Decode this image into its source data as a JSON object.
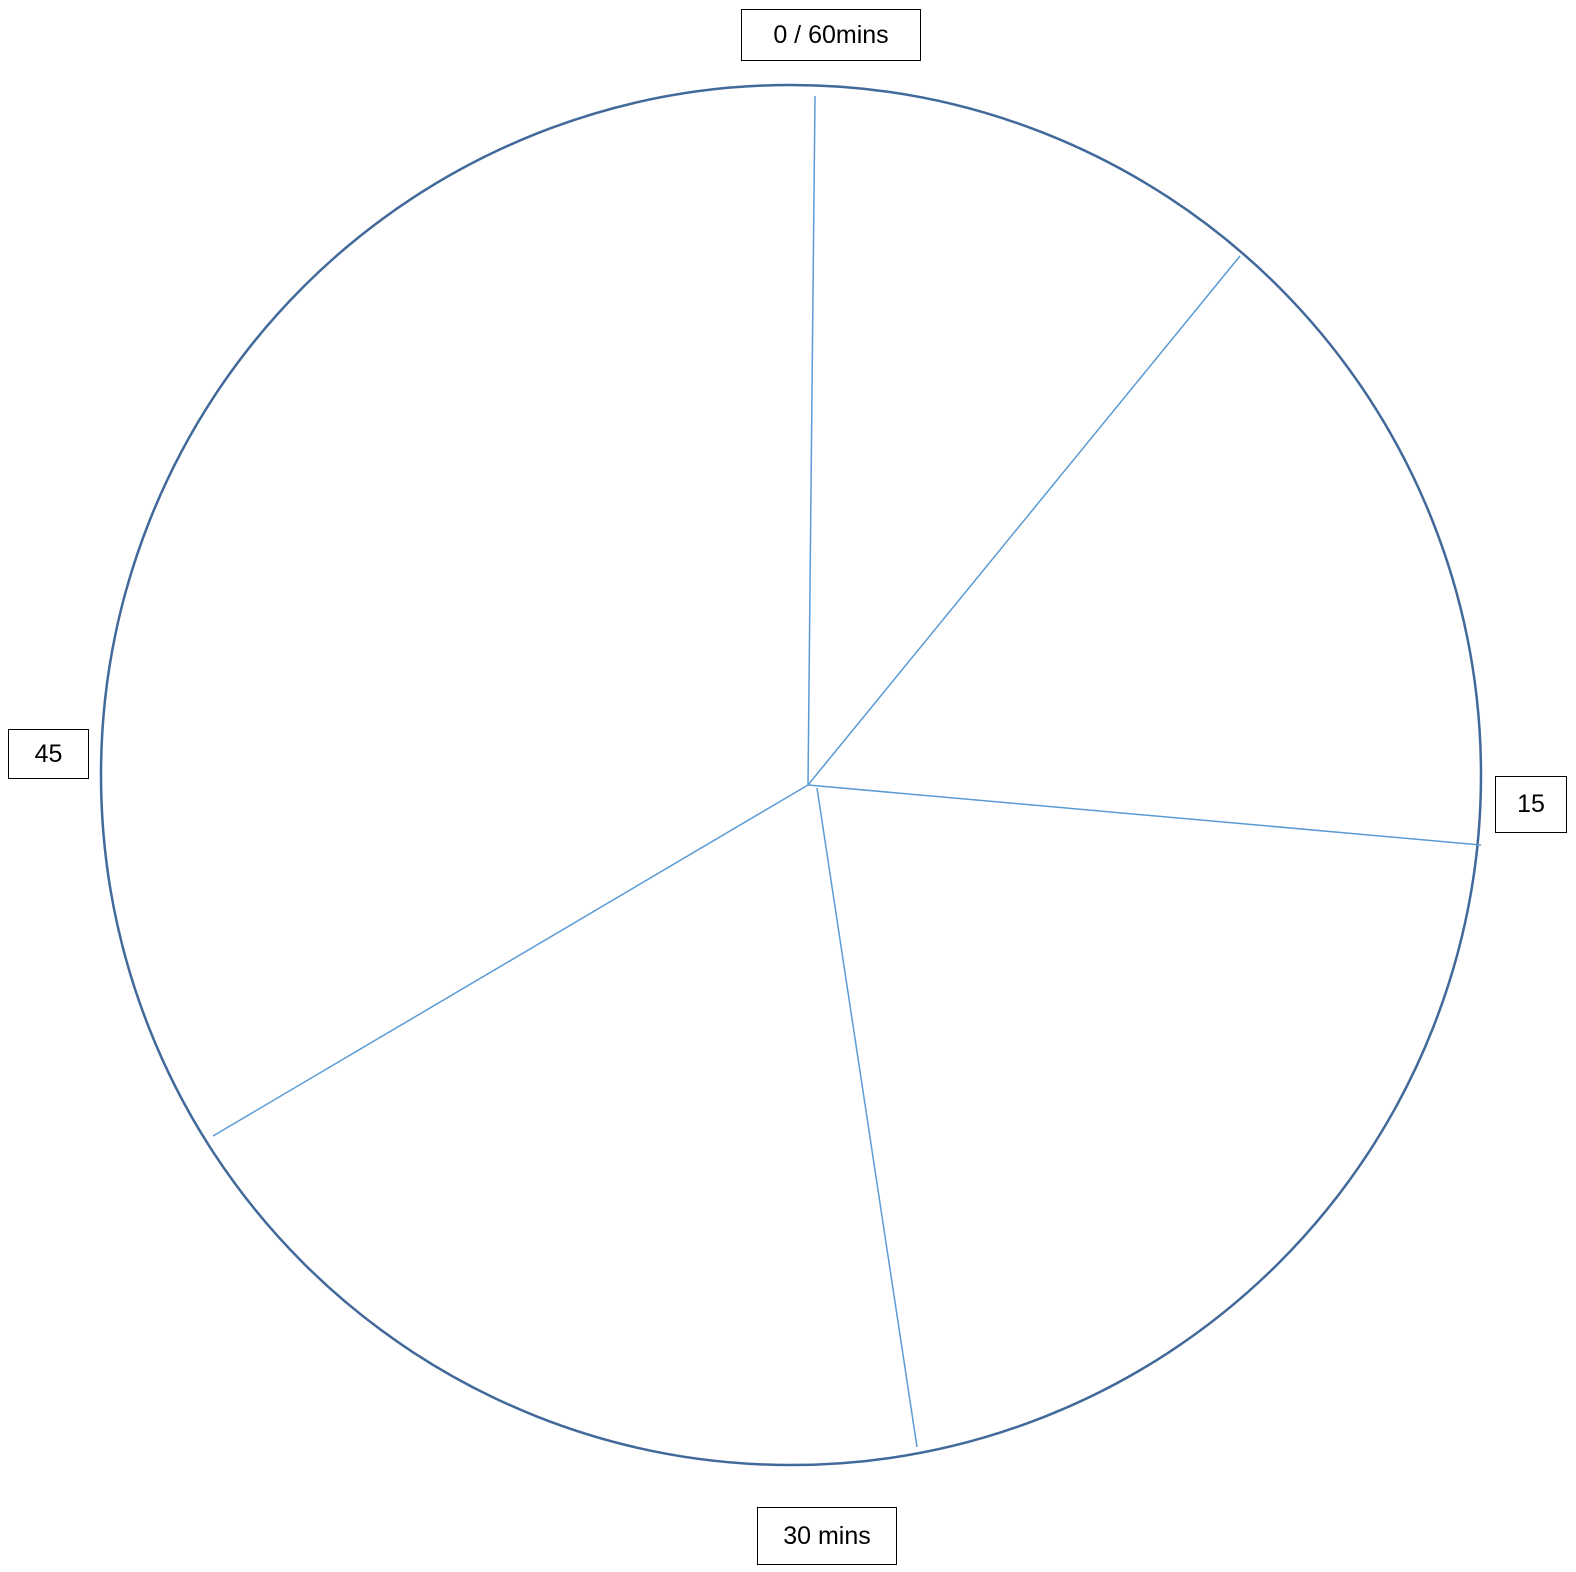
{
  "diagram": {
    "labels": {
      "top": "0 / 60mins",
      "right": "15",
      "bottom": "30 mins",
      "left": "45"
    },
    "colors": {
      "circle_stroke": "#41699a",
      "divider_stroke": "#5b9bd5",
      "label_border": "#000000",
      "label_text": "#000000"
    }
  }
}
